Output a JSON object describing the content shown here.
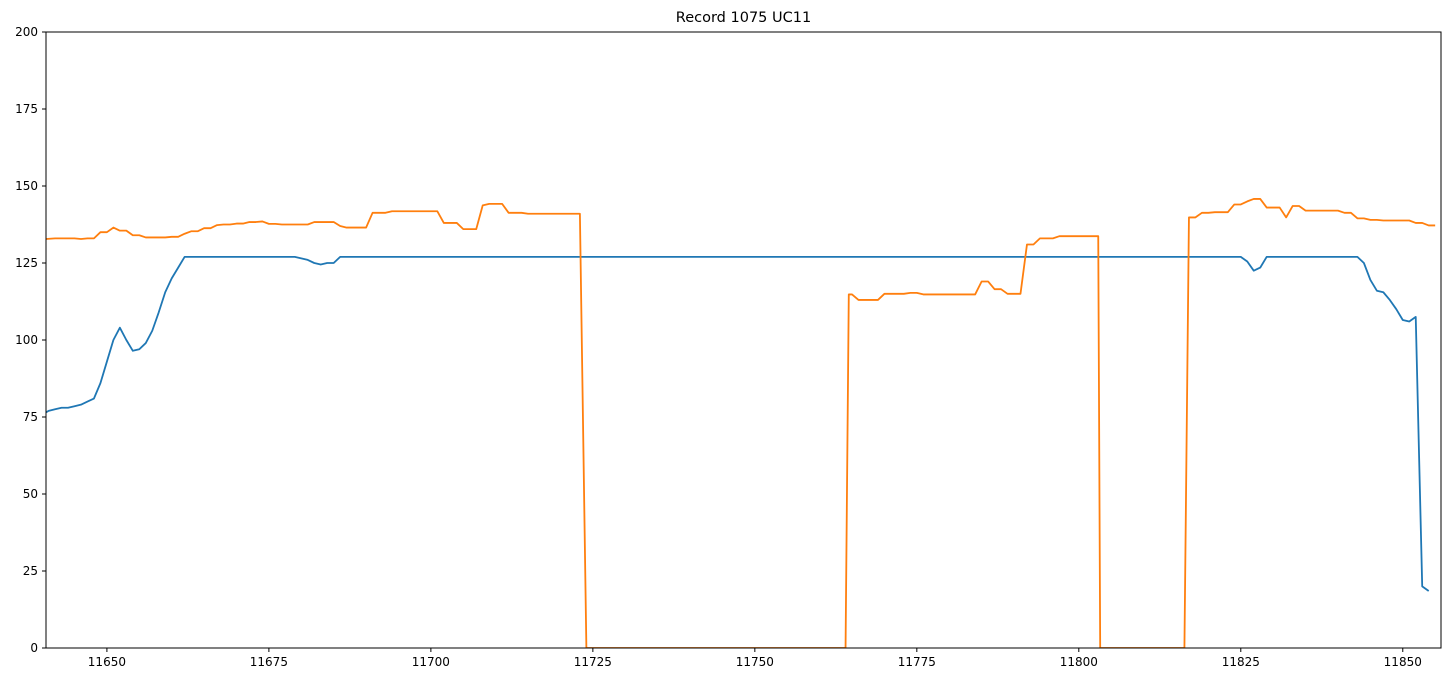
{
  "chart_data": {
    "type": "line",
    "title": "Record 1075 UC11",
    "xlabel": "",
    "ylabel": "",
    "xlim": [
      11640.6,
      11855.9
    ],
    "ylim": [
      0,
      200
    ],
    "xticks": [
      11650,
      11675,
      11700,
      11725,
      11750,
      11775,
      11800,
      11825,
      11850
    ],
    "yticks": [
      0,
      25,
      50,
      75,
      100,
      125,
      150,
      175,
      200
    ],
    "grid": false,
    "legend": "none",
    "colors": [
      "#1f77b4",
      "#ff7f0e"
    ],
    "series": [
      {
        "points": [
          [
            11640.6,
            76.5
          ],
          [
            11641,
            77
          ],
          [
            11642,
            77.5
          ],
          [
            11643,
            78
          ],
          [
            11644,
            78
          ],
          [
            11645,
            78.5
          ],
          [
            11646,
            79
          ],
          [
            11647,
            80
          ],
          [
            11648,
            81
          ],
          [
            11649,
            86
          ],
          [
            11650,
            93
          ],
          [
            11651,
            100
          ],
          [
            11652,
            104
          ],
          [
            11653,
            100
          ],
          [
            11654,
            96.5
          ],
          [
            11655,
            97
          ],
          [
            11656,
            99
          ],
          [
            11657,
            103
          ],
          [
            11658,
            109
          ],
          [
            11659,
            115.5
          ],
          [
            11660,
            120
          ],
          [
            11661,
            123.5
          ],
          [
            11662,
            127
          ],
          [
            11679,
            127
          ],
          [
            11680,
            126.5
          ],
          [
            11681,
            126
          ],
          [
            11682,
            125
          ],
          [
            11683,
            124.5
          ],
          [
            11684,
            125
          ],
          [
            11685,
            125
          ],
          [
            11686,
            127
          ],
          [
            11825,
            127
          ],
          [
            11826,
            125.5
          ],
          [
            11827,
            122.5
          ],
          [
            11828,
            123.5
          ],
          [
            11829,
            127
          ],
          [
            11843,
            127
          ],
          [
            11844,
            125
          ],
          [
            11845,
            119.5
          ],
          [
            11846,
            116
          ],
          [
            11847,
            115.5
          ],
          [
            11848,
            113
          ],
          [
            11849,
            110
          ],
          [
            11850,
            106.5
          ],
          [
            11851,
            106
          ],
          [
            11852,
            107.5
          ],
          [
            11853,
            20
          ],
          [
            11854,
            18.5
          ]
        ]
      },
      {
        "points": [
          [
            11640.6,
            132.8
          ],
          [
            11642,
            133
          ],
          [
            11644,
            133
          ],
          [
            11645,
            133
          ],
          [
            11646,
            132.8
          ],
          [
            11647,
            133
          ],
          [
            11648,
            133
          ],
          [
            11649,
            135
          ],
          [
            11650,
            135
          ],
          [
            11651,
            136.5
          ],
          [
            11652,
            135.5
          ],
          [
            11653,
            135.5
          ],
          [
            11654,
            134
          ],
          [
            11655,
            134
          ],
          [
            11656,
            133.3
          ],
          [
            11657,
            133.3
          ],
          [
            11658,
            133.3
          ],
          [
            11659,
            133.3
          ],
          [
            11660,
            133.5
          ],
          [
            11661,
            133.5
          ],
          [
            11662,
            134.5
          ],
          [
            11663,
            135.3
          ],
          [
            11664,
            135.3
          ],
          [
            11665,
            136.3
          ],
          [
            11666,
            136.3
          ],
          [
            11667,
            137.3
          ],
          [
            11668,
            137.5
          ],
          [
            11669,
            137.5
          ],
          [
            11670,
            137.8
          ],
          [
            11671,
            137.8
          ],
          [
            11672,
            138.3
          ],
          [
            11673,
            138.3
          ],
          [
            11674,
            138.5
          ],
          [
            11675,
            137.7
          ],
          [
            11676,
            137.7
          ],
          [
            11677,
            137.5
          ],
          [
            11678,
            137.5
          ],
          [
            11679,
            137.5
          ],
          [
            11680,
            137.5
          ],
          [
            11681,
            137.5
          ],
          [
            11682,
            138.3
          ],
          [
            11683,
            138.3
          ],
          [
            11684,
            138.3
          ],
          [
            11685,
            138.3
          ],
          [
            11686,
            137
          ],
          [
            11687,
            136.5
          ],
          [
            11688,
            136.5
          ],
          [
            11689,
            136.5
          ],
          [
            11690,
            136.5
          ],
          [
            11691,
            141.3
          ],
          [
            11692,
            141.3
          ],
          [
            11693,
            141.3
          ],
          [
            11694,
            141.8
          ],
          [
            11695,
            141.8
          ],
          [
            11701,
            141.8
          ],
          [
            11702,
            138
          ],
          [
            11703,
            138
          ],
          [
            11704,
            138
          ],
          [
            11705,
            136
          ],
          [
            11706,
            136
          ],
          [
            11707,
            136
          ],
          [
            11708,
            143.7
          ],
          [
            11709,
            144.2
          ],
          [
            11710,
            144.2
          ],
          [
            11711,
            144.2
          ],
          [
            11712,
            141.3
          ],
          [
            11713,
            141.3
          ],
          [
            11714,
            141.3
          ],
          [
            11715,
            141
          ],
          [
            11723,
            141
          ],
          [
            11724,
            0
          ],
          [
            11764,
            0
          ],
          [
            11764.5,
            114.8
          ],
          [
            11765,
            114.8
          ],
          [
            11766,
            113
          ],
          [
            11767,
            113
          ],
          [
            11768,
            113
          ],
          [
            11769,
            113
          ],
          [
            11770,
            115
          ],
          [
            11771,
            115
          ],
          [
            11772,
            115
          ],
          [
            11773,
            115
          ],
          [
            11774,
            115.3
          ],
          [
            11775,
            115.3
          ],
          [
            11776,
            114.8
          ],
          [
            11784,
            114.8
          ],
          [
            11785,
            119
          ],
          [
            11786,
            119
          ],
          [
            11787,
            116.5
          ],
          [
            11788,
            116.5
          ],
          [
            11789,
            115
          ],
          [
            11790,
            115
          ],
          [
            11791,
            115
          ],
          [
            11792,
            131
          ],
          [
            11793,
            131
          ],
          [
            11794,
            133
          ],
          [
            11795,
            133
          ],
          [
            11796,
            133
          ],
          [
            11797,
            133.7
          ],
          [
            11798,
            133.7
          ],
          [
            11803,
            133.7
          ],
          [
            11803.3,
            0
          ],
          [
            11816.3,
            0
          ],
          [
            11817,
            139.8
          ],
          [
            11818,
            139.8
          ],
          [
            11819,
            141.3
          ],
          [
            11820,
            141.3
          ],
          [
            11821,
            141.5
          ],
          [
            11822,
            141.5
          ],
          [
            11823,
            141.5
          ],
          [
            11824,
            144
          ],
          [
            11825,
            144
          ],
          [
            11826,
            145
          ],
          [
            11827,
            145.8
          ],
          [
            11828,
            145.8
          ],
          [
            11829,
            143
          ],
          [
            11830,
            143
          ],
          [
            11831,
            143
          ],
          [
            11832,
            139.8
          ],
          [
            11833,
            143.5
          ],
          [
            11834,
            143.5
          ],
          [
            11835,
            142
          ],
          [
            11840,
            142
          ],
          [
            11841,
            141.3
          ],
          [
            11842,
            141.3
          ],
          [
            11843,
            139.5
          ],
          [
            11844,
            139.5
          ],
          [
            11845,
            139
          ],
          [
            11846,
            139
          ],
          [
            11847,
            138.8
          ],
          [
            11851,
            138.8
          ],
          [
            11852,
            138
          ],
          [
            11853,
            138
          ],
          [
            11854,
            137.2
          ],
          [
            11855,
            137.2
          ]
        ]
      }
    ]
  }
}
